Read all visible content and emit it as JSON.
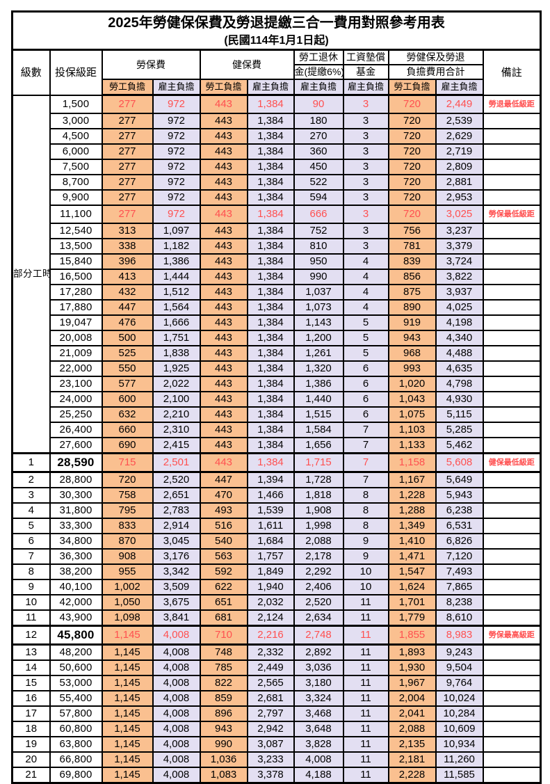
{
  "title": "2025年勞健保保費及勞退提繳三合一費用對照參考用表",
  "subtitle": "(民國114年1月1日起)",
  "colors": {
    "employee_column_bg": "#FAC090",
    "employer_column_bg": "#E3DFF2",
    "highlight_text": "#FF5050",
    "border": "#000000"
  },
  "header": {
    "level": "級數",
    "bracket": "投保級距",
    "labor_insurance": "勞保費",
    "health_insurance": "健保費",
    "pension_line1": "勞工退休",
    "pension_line2": "金(提繳6%)",
    "wage_fund_line1": "工資墊償",
    "wage_fund_line2": "基金",
    "total_line1": "勞健保及勞退",
    "total_line2": "負擔費用合計",
    "remark": "備註",
    "employee_label": "勞工負擔",
    "employer_label": "雇主負擔"
  },
  "part_time_label": "部分工時",
  "columns_key": [
    "labor_employee",
    "labor_employer",
    "health_employee",
    "health_employer",
    "pension_employer",
    "wage_fund_employer",
    "total_employee",
    "total_employer"
  ],
  "rows": [
    {
      "span": 23,
      "bracket": "1,500",
      "values": [
        "277",
        "972",
        "443",
        "1,384",
        "90",
        "3",
        "720",
        "2,449"
      ],
      "remark": "勞退最低級距",
      "highlight": true
    },
    {
      "bracket": "3,000",
      "values": [
        "277",
        "972",
        "443",
        "1,384",
        "180",
        "3",
        "720",
        "2,539"
      ]
    },
    {
      "bracket": "4,500",
      "values": [
        "277",
        "972",
        "443",
        "1,384",
        "270",
        "3",
        "720",
        "2,629"
      ]
    },
    {
      "bracket": "6,000",
      "values": [
        "277",
        "972",
        "443",
        "1,384",
        "360",
        "3",
        "720",
        "2,719"
      ]
    },
    {
      "bracket": "7,500",
      "values": [
        "277",
        "972",
        "443",
        "1,384",
        "450",
        "3",
        "720",
        "2,809"
      ]
    },
    {
      "bracket": "8,700",
      "values": [
        "277",
        "972",
        "443",
        "1,384",
        "522",
        "3",
        "720",
        "2,881"
      ]
    },
    {
      "bracket": "9,900",
      "values": [
        "277",
        "972",
        "443",
        "1,384",
        "594",
        "3",
        "720",
        "2,953"
      ]
    },
    {
      "bracket": "11,100",
      "values": [
        "277",
        "972",
        "443",
        "1,384",
        "666",
        "3",
        "720",
        "3,025"
      ],
      "remark": "勞保最低級距",
      "highlight": true
    },
    {
      "bracket": "12,540",
      "values": [
        "313",
        "1,097",
        "443",
        "1,384",
        "752",
        "3",
        "756",
        "3,237"
      ]
    },
    {
      "bracket": "13,500",
      "values": [
        "338",
        "1,182",
        "443",
        "1,384",
        "810",
        "3",
        "781",
        "3,379"
      ]
    },
    {
      "bracket": "15,840",
      "values": [
        "396",
        "1,386",
        "443",
        "1,384",
        "950",
        "4",
        "839",
        "3,724"
      ]
    },
    {
      "bracket": "16,500",
      "values": [
        "413",
        "1,444",
        "443",
        "1,384",
        "990",
        "4",
        "856",
        "3,822"
      ]
    },
    {
      "bracket": "17,280",
      "values": [
        "432",
        "1,512",
        "443",
        "1,384",
        "1,037",
        "4",
        "875",
        "3,937"
      ]
    },
    {
      "bracket": "17,880",
      "values": [
        "447",
        "1,564",
        "443",
        "1,384",
        "1,073",
        "4",
        "890",
        "4,025"
      ]
    },
    {
      "bracket": "19,047",
      "values": [
        "476",
        "1,666",
        "443",
        "1,384",
        "1,143",
        "5",
        "919",
        "4,198"
      ]
    },
    {
      "bracket": "20,008",
      "values": [
        "500",
        "1,751",
        "443",
        "1,384",
        "1,200",
        "5",
        "943",
        "4,340"
      ]
    },
    {
      "bracket": "21,009",
      "values": [
        "525",
        "1,838",
        "443",
        "1,384",
        "1,261",
        "5",
        "968",
        "4,488"
      ]
    },
    {
      "bracket": "22,000",
      "values": [
        "550",
        "1,925",
        "443",
        "1,384",
        "1,320",
        "6",
        "993",
        "4,635"
      ]
    },
    {
      "bracket": "23,100",
      "values": [
        "577",
        "2,022",
        "443",
        "1,384",
        "1,386",
        "6",
        "1,020",
        "4,798"
      ]
    },
    {
      "bracket": "24,000",
      "values": [
        "600",
        "2,100",
        "443",
        "1,384",
        "1,440",
        "6",
        "1,043",
        "4,930"
      ]
    },
    {
      "bracket": "25,250",
      "values": [
        "632",
        "2,210",
        "443",
        "1,384",
        "1,515",
        "6",
        "1,075",
        "5,115"
      ]
    },
    {
      "bracket": "26,400",
      "values": [
        "660",
        "2,310",
        "443",
        "1,384",
        "1,584",
        "7",
        "1,103",
        "5,285"
      ]
    },
    {
      "bracket": "27,600",
      "values": [
        "690",
        "2,415",
        "443",
        "1,384",
        "1,656",
        "7",
        "1,133",
        "5,462"
      ]
    },
    {
      "level": "1",
      "bracket": "28,590",
      "bold": true,
      "values": [
        "715",
        "2,501",
        "443",
        "1,384",
        "1,715",
        "7",
        "1,158",
        "5,608"
      ],
      "remark": "健保最低級距",
      "highlight": true,
      "thick": true
    },
    {
      "level": "2",
      "bracket": "28,800",
      "values": [
        "720",
        "2,520",
        "447",
        "1,394",
        "1,728",
        "7",
        "1,167",
        "5,649"
      ]
    },
    {
      "level": "3",
      "bracket": "30,300",
      "values": [
        "758",
        "2,651",
        "470",
        "1,466",
        "1,818",
        "8",
        "1,228",
        "5,943"
      ]
    },
    {
      "level": "4",
      "bracket": "31,800",
      "values": [
        "795",
        "2,783",
        "493",
        "1,539",
        "1,908",
        "8",
        "1,288",
        "6,238"
      ]
    },
    {
      "level": "5",
      "bracket": "33,300",
      "values": [
        "833",
        "2,914",
        "516",
        "1,611",
        "1,998",
        "8",
        "1,349",
        "6,531"
      ]
    },
    {
      "level": "6",
      "bracket": "34,800",
      "values": [
        "870",
        "3,045",
        "540",
        "1,684",
        "2,088",
        "9",
        "1,410",
        "6,826"
      ]
    },
    {
      "level": "7",
      "bracket": "36,300",
      "values": [
        "908",
        "3,176",
        "563",
        "1,757",
        "2,178",
        "9",
        "1,471",
        "7,120"
      ]
    },
    {
      "level": "8",
      "bracket": "38,200",
      "values": [
        "955",
        "3,342",
        "592",
        "1,849",
        "2,292",
        "10",
        "1,547",
        "7,493"
      ]
    },
    {
      "level": "9",
      "bracket": "40,100",
      "values": [
        "1,002",
        "3,509",
        "622",
        "1,940",
        "2,406",
        "10",
        "1,624",
        "7,865"
      ]
    },
    {
      "level": "10",
      "bracket": "42,000",
      "values": [
        "1,050",
        "3,675",
        "651",
        "2,032",
        "2,520",
        "11",
        "1,701",
        "8,238"
      ]
    },
    {
      "level": "11",
      "bracket": "43,900",
      "values": [
        "1,098",
        "3,841",
        "681",
        "2,124",
        "2,634",
        "11",
        "1,779",
        "8,610"
      ]
    },
    {
      "level": "12",
      "bracket": "45,800",
      "bold": true,
      "values": [
        "1,145",
        "4,008",
        "710",
        "2,216",
        "2,748",
        "11",
        "1,855",
        "8,983"
      ],
      "remark": "勞保最高級距",
      "highlight": true,
      "thick": true
    },
    {
      "level": "13",
      "bracket": "48,200",
      "values": [
        "1,145",
        "4,008",
        "748",
        "2,332",
        "2,892",
        "11",
        "1,893",
        "9,243"
      ]
    },
    {
      "level": "14",
      "bracket": "50,600",
      "values": [
        "1,145",
        "4,008",
        "785",
        "2,449",
        "3,036",
        "11",
        "1,930",
        "9,504"
      ]
    },
    {
      "level": "15",
      "bracket": "53,000",
      "values": [
        "1,145",
        "4,008",
        "822",
        "2,565",
        "3,180",
        "11",
        "1,967",
        "9,764"
      ]
    },
    {
      "level": "16",
      "bracket": "55,400",
      "values": [
        "1,145",
        "4,008",
        "859",
        "2,681",
        "3,324",
        "11",
        "2,004",
        "10,024"
      ]
    },
    {
      "level": "17",
      "bracket": "57,800",
      "values": [
        "1,145",
        "4,008",
        "896",
        "2,797",
        "3,468",
        "11",
        "2,041",
        "10,284"
      ]
    },
    {
      "level": "18",
      "bracket": "60,800",
      "values": [
        "1,145",
        "4,008",
        "943",
        "2,942",
        "3,648",
        "11",
        "2,088",
        "10,609"
      ]
    },
    {
      "level": "19",
      "bracket": "63,800",
      "values": [
        "1,145",
        "4,008",
        "990",
        "3,087",
        "3,828",
        "11",
        "2,135",
        "10,934"
      ]
    },
    {
      "level": "20",
      "bracket": "66,800",
      "values": [
        "1,145",
        "4,008",
        "1,036",
        "3,233",
        "4,008",
        "11",
        "2,181",
        "11,260"
      ]
    },
    {
      "level": "21",
      "bracket": "69,800",
      "values": [
        "1,145",
        "4,008",
        "1,083",
        "3,378",
        "4,188",
        "11",
        "2,228",
        "11,585"
      ]
    }
  ]
}
